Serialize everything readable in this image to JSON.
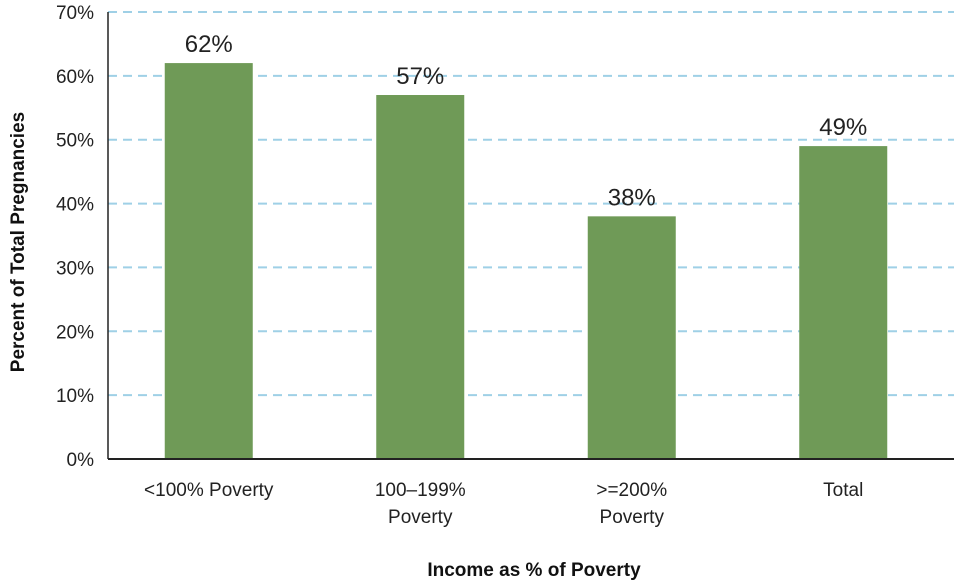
{
  "chart_data": {
    "type": "bar",
    "categories": [
      [
        "<100% Poverty"
      ],
      [
        "100–199%",
        "Poverty"
      ],
      [
        ">=200%",
        "Poverty"
      ],
      [
        "Total"
      ]
    ],
    "values": [
      62,
      57,
      38,
      49
    ],
    "data_labels": [
      "62%",
      "57%",
      "38%",
      "49%"
    ],
    "xlabel": "Income as % of Poverty",
    "ylabel": "Percent of Total Pregnancies",
    "ylim": [
      0,
      70
    ],
    "yticks": [
      0,
      10,
      20,
      30,
      40,
      50,
      60,
      70
    ],
    "ytick_labels": [
      "0%",
      "10%",
      "20%",
      "30%",
      "40%",
      "50%",
      "60%",
      "70%"
    ],
    "grid": "horizontal dashed",
    "colors": {
      "bar": "#6f9a57",
      "grid": "#9fd0e6",
      "axis": "#222222"
    }
  }
}
